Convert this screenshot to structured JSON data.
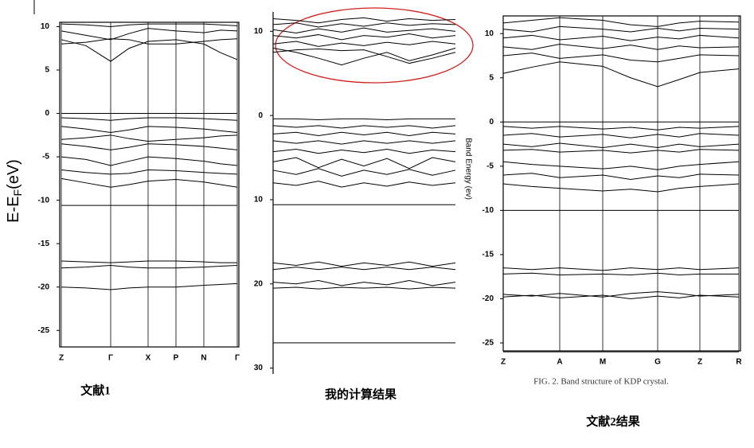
{
  "chart_data": [
    {
      "type": "line",
      "color": "#000000",
      "ylabel": "E-E",
      "ylabel_subscript": "F",
      "ylabel_suffix": "(eV)",
      "caption": "文献1",
      "categories": [
        "Z",
        null,
        "Γ",
        null,
        "X",
        "P",
        "N",
        null,
        "Γ"
      ],
      "ylim": [
        -26.9,
        10.5
      ],
      "yticks": [
        10,
        5,
        0,
        -5,
        -10,
        -15,
        -20,
        -25
      ],
      "series": [
        {
          "values": [
            10.3,
            10.2,
            10.0,
            10.2,
            10.3,
            10.3,
            10.3,
            10.2,
            10.1
          ]
        },
        {
          "values": [
            9.5,
            9.0,
            8.5,
            9.2,
            9.8,
            9.5,
            9.3,
            9.6,
            9.5
          ]
        },
        {
          "values": [
            8.5,
            7.8,
            6.0,
            7.5,
            8.3,
            8.5,
            8.0,
            7.0,
            6.2
          ]
        },
        {
          "values": [
            8.0,
            8.2,
            8.6,
            8.5,
            8.0,
            8.0,
            8.3,
            8.5,
            8.6
          ]
        },
        {
          "values": [
            0,
            0,
            0,
            0,
            0,
            0,
            0,
            0,
            0
          ]
        },
        {
          "values": [
            -0.5,
            -0.6,
            -0.8,
            -0.6,
            -0.5,
            -0.5,
            -0.6,
            -0.7,
            -0.8
          ]
        },
        {
          "values": [
            -1.5,
            -1.8,
            -2.2,
            -1.9,
            -1.5,
            -1.6,
            -1.8,
            -2.0,
            -2.2
          ]
        },
        {
          "values": [
            -3.0,
            -2.8,
            -2.5,
            -2.9,
            -3.2,
            -3.0,
            -2.8,
            -2.6,
            -2.5
          ]
        },
        {
          "values": [
            -3.5,
            -3.8,
            -4.2,
            -3.9,
            -3.5,
            -3.6,
            -3.8,
            -4.0,
            -4.2
          ]
        },
        {
          "values": [
            -5.0,
            -5.3,
            -6.0,
            -5.5,
            -5.0,
            -5.2,
            -5.5,
            -5.8,
            -6.0
          ]
        },
        {
          "values": [
            -6.5,
            -6.8,
            -7.0,
            -6.9,
            -6.5,
            -6.6,
            -6.8,
            -6.9,
            -7.0
          ]
        },
        {
          "values": [
            -7.5,
            -8.0,
            -8.5,
            -8.2,
            -7.8,
            -7.6,
            -7.9,
            -8.2,
            -8.5
          ]
        },
        {
          "values": [
            -10.6,
            -10.6,
            -10.6,
            -10.6,
            -10.6,
            -10.6,
            -10.6,
            -10.6,
            -10.6
          ]
        },
        {
          "values": [
            -17.0,
            -17.1,
            -17.2,
            -17.1,
            -17.0,
            -17.0,
            -17.1,
            -17.2,
            -17.2
          ]
        },
        {
          "values": [
            -17.8,
            -17.7,
            -17.5,
            -17.7,
            -17.8,
            -17.8,
            -17.7,
            -17.6,
            -17.5
          ]
        },
        {
          "values": [
            -20.0,
            -20.1,
            -20.3,
            -20.1,
            -20.0,
            -20.0,
            -19.8,
            -19.7,
            -19.6
          ]
        }
      ]
    },
    {
      "type": "line",
      "color": "#000000",
      "ylabel": "Band Energy (ev)",
      "caption": "我的计算结果",
      "categories": [
        null,
        null,
        null,
        null,
        null,
        null,
        null,
        null,
        null
      ],
      "ylim": [
        -30.7,
        12.3
      ],
      "yticks": [
        10,
        0,
        {
          "value": -10,
          "label": "10"
        },
        {
          "value": -20,
          "label": "20"
        },
        {
          "value": -30,
          "label": "30"
        }
      ],
      "series": [
        {
          "values": [
            11.5,
            11.3,
            11.0,
            11.4,
            11.6,
            11.2,
            11.5,
            11.3,
            11.4
          ]
        },
        {
          "values": [
            10.8,
            11.0,
            10.5,
            10.9,
            10.6,
            11.0,
            10.7,
            10.9,
            10.8
          ]
        },
        {
          "values": [
            10.2,
            9.8,
            10.3,
            9.9,
            10.4,
            9.9,
            10.1,
            10.3,
            10.0
          ]
        },
        {
          "values": [
            9.5,
            9.2,
            9.6,
            9.0,
            9.5,
            9.3,
            9.7,
            9.2,
            9.5
          ]
        },
        {
          "values": [
            8.5,
            8.8,
            8.2,
            8.6,
            8.3,
            8.7,
            8.4,
            8.8,
            8.5
          ]
        },
        {
          "values": [
            8.0,
            7.5,
            6.8,
            6.0,
            6.8,
            7.5,
            6.5,
            7.2,
            8.0
          ]
        },
        {
          "values": [
            7.5,
            7.8,
            7.9,
            7.7,
            7.8,
            7.0,
            6.2,
            6.8,
            7.5
          ]
        },
        {
          "values": [
            -0.4,
            -0.4,
            -0.5,
            -0.4,
            -0.4,
            -0.5,
            -0.4,
            -0.4,
            -0.4
          ]
        },
        {
          "values": [
            -1.2,
            -1.4,
            -1.2,
            -1.5,
            -1.2,
            -1.4,
            -1.2,
            -1.5,
            -1.2
          ]
        },
        {
          "values": [
            -2.2,
            -2.0,
            -2.4,
            -2.0,
            -2.3,
            -2.0,
            -2.4,
            -2.0,
            -2.2
          ]
        },
        {
          "values": [
            -3.0,
            -3.3,
            -3.0,
            -3.4,
            -3.0,
            -3.3,
            -3.0,
            -3.3,
            -3.0
          ]
        },
        {
          "values": [
            -4.3,
            -4.0,
            -4.5,
            -4.1,
            -4.4,
            -4.0,
            -4.5,
            -4.1,
            -4.3
          ]
        },
        {
          "values": [
            -5.5,
            -5.0,
            -6.2,
            -5.2,
            -6.0,
            -5.1,
            -6.3,
            -5.0,
            -5.5
          ]
        },
        {
          "values": [
            -6.5,
            -7.0,
            -6.3,
            -7.2,
            -6.5,
            -7.0,
            -6.4,
            -7.1,
            -6.5
          ]
        },
        {
          "values": [
            -8.0,
            -8.3,
            -7.8,
            -8.5,
            -8.0,
            -8.4,
            -7.9,
            -8.3,
            -8.0
          ]
        },
        {
          "values": [
            -10.6,
            -10.6,
            -10.6,
            -10.6,
            -10.6,
            -10.6,
            -10.6,
            -10.6,
            -10.6
          ]
        },
        {
          "values": [
            -17.5,
            -17.8,
            -17.4,
            -17.9,
            -17.5,
            -17.8,
            -17.4,
            -17.9,
            -17.5
          ]
        },
        {
          "values": [
            -18.3,
            -18.0,
            -18.3,
            -18.0,
            -18.3,
            -18.0,
            -18.3,
            -18.0,
            -18.3
          ]
        },
        {
          "values": [
            -19.8,
            -20.0,
            -19.6,
            -20.2,
            -19.8,
            -20.1,
            -19.6,
            -20.2,
            -19.8
          ]
        },
        {
          "values": [
            -20.5,
            -20.4,
            -20.6,
            -20.4,
            -20.5,
            -20.4,
            -20.6,
            -20.4,
            -20.5
          ]
        },
        {
          "values": [
            -27.0,
            -27.0,
            -27.0,
            -27.0,
            -27.0,
            -27.0,
            -27.0,
            -27.0,
            -27.0
          ]
        }
      ]
    },
    {
      "type": "line",
      "color": "#000000",
      "figure_caption": "FIG. 2. Band structure of KDP crystal.",
      "caption": "文献2结果",
      "categories": [
        "Z",
        null,
        "A",
        "M",
        null,
        "G",
        null,
        "Z",
        "R"
      ],
      "ylim": [
        -25.9,
        12.0
      ],
      "yticks": [
        10,
        5,
        0,
        -5,
        -10,
        -15,
        -20,
        -25
      ],
      "series": [
        {
          "values": [
            11.2,
            11.5,
            11.8,
            11.5,
            11.0,
            10.8,
            11.2,
            11.4,
            11.3
          ]
        },
        {
          "values": [
            10.5,
            10.2,
            10.8,
            10.5,
            10.2,
            10.6,
            10.3,
            10.6,
            10.5
          ]
        },
        {
          "values": [
            9.5,
            9.8,
            9.3,
            9.7,
            9.2,
            9.6,
            9.4,
            9.8,
            9.5
          ]
        },
        {
          "values": [
            8.5,
            8.2,
            8.8,
            8.3,
            8.7,
            8.2,
            8.6,
            8.4,
            8.5
          ]
        },
        {
          "values": [
            7.5,
            7.8,
            7.2,
            7.6,
            7.0,
            6.8,
            7.2,
            7.6,
            7.5
          ]
        },
        {
          "values": [
            5.5,
            6.2,
            6.8,
            6.3,
            5.0,
            4.0,
            4.8,
            5.6,
            6.0
          ]
        },
        {
          "values": [
            0,
            0,
            0,
            0,
            0,
            0,
            0,
            0,
            0
          ]
        },
        {
          "values": [
            -0.5,
            -0.7,
            -0.5,
            -0.8,
            -0.6,
            -0.9,
            -0.6,
            -0.7,
            -0.5
          ]
        },
        {
          "values": [
            -1.5,
            -1.3,
            -1.7,
            -1.4,
            -1.8,
            -1.4,
            -1.7,
            -1.3,
            -1.5
          ]
        },
        {
          "values": [
            -2.5,
            -2.8,
            -2.4,
            -2.9,
            -2.5,
            -2.9,
            -2.5,
            -2.8,
            -2.5
          ]
        },
        {
          "values": [
            -3.2,
            -3.1,
            -3.4,
            -3.2,
            -3.5,
            -3.2,
            -3.4,
            -3.1,
            -3.2
          ]
        },
        {
          "values": [
            -4.5,
            -4.8,
            -5.0,
            -5.3,
            -5.0,
            -5.4,
            -5.0,
            -4.8,
            -4.5
          ]
        },
        {
          "values": [
            -6.0,
            -5.8,
            -6.3,
            -6.0,
            -6.5,
            -6.1,
            -6.3,
            -5.9,
            -6.0
          ]
        },
        {
          "values": [
            -7.0,
            -7.3,
            -7.5,
            -7.8,
            -7.6,
            -7.9,
            -7.5,
            -7.3,
            -7.0
          ]
        },
        {
          "values": [
            -10.0,
            -10.0,
            -10.0,
            -10.0,
            -10.0,
            -10.0,
            -10.0,
            -10.0,
            -10.0
          ]
        },
        {
          "values": [
            -16.5,
            -16.7,
            -16.5,
            -16.8,
            -16.5,
            -16.7,
            -16.5,
            -16.7,
            -16.5
          ]
        },
        {
          "values": [
            -17.2,
            -17.1,
            -17.3,
            -17.2,
            -17.3,
            -17.1,
            -17.3,
            -17.2,
            -17.2
          ]
        },
        {
          "values": [
            -19.5,
            -19.7,
            -19.4,
            -19.8,
            -19.4,
            -19.2,
            -19.4,
            -19.7,
            -19.5
          ]
        },
        {
          "values": [
            -19.8,
            -19.6,
            -19.9,
            -19.6,
            -20.0,
            -19.7,
            -19.9,
            -19.6,
            -19.8
          ]
        },
        {
          "values": [
            -26.0,
            -26.0,
            -26.0,
            -26.0,
            -26.0,
            -26.0,
            -26.0,
            -26.0,
            -26.0
          ]
        }
      ]
    }
  ]
}
